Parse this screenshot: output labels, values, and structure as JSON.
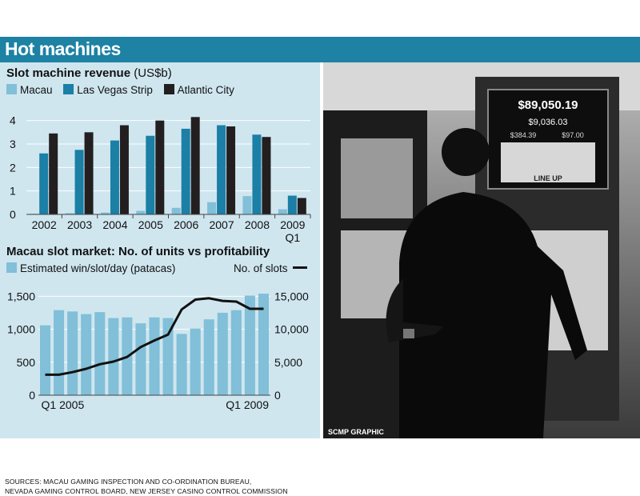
{
  "header": {
    "title": "Hot machines"
  },
  "colors": {
    "header": "#1d82a3",
    "panel": "#cfe6ef",
    "macau": "#82bfd8",
    "las_vegas": "#1b7fa6",
    "atlantic_city": "#231f20",
    "slots_line": "#111111"
  },
  "photo": {
    "credit": "SCMP GRAPHIC",
    "screen_amount_1": "$89,050.19",
    "screen_amount_2": "$9,036.03",
    "screen_amount_3": "$384.39",
    "screen_amount_4": "$97.00",
    "screen_label": "LINE UP"
  },
  "sources": {
    "line1": "SOURCES: MACAU GAMING INSPECTION AND CO-ORDINATION BUREAU,",
    "line2": "NEVADA GAMING CONTROL BOARD, NEW JERSEY CASINO CONTROL COMMISSION"
  },
  "chart_data": [
    {
      "type": "bar",
      "title": "Slot machine revenue",
      "title_unit": "(US$b)",
      "categories": [
        "2002",
        "2003",
        "2004",
        "2005",
        "2006",
        "2007",
        "2008",
        "2009 Q1"
      ],
      "category_lines": [
        [
          "2002"
        ],
        [
          "2003"
        ],
        [
          "2004"
        ],
        [
          "2005"
        ],
        [
          "2006"
        ],
        [
          "2007"
        ],
        [
          "2008"
        ],
        [
          "2009",
          "Q1"
        ]
      ],
      "series": [
        {
          "name": "Macau",
          "values": [
            0.03,
            0.05,
            0.08,
            0.15,
            0.28,
            0.52,
            0.78,
            0.22
          ]
        },
        {
          "name": "Las Vegas Strip",
          "values": [
            2.6,
            2.75,
            3.15,
            3.35,
            3.65,
            3.8,
            3.4,
            0.8
          ]
        },
        {
          "name": "Atlantic City",
          "values": [
            3.45,
            3.5,
            3.8,
            4.0,
            4.15,
            3.75,
            3.3,
            0.7
          ]
        }
      ],
      "ylim": [
        0,
        4.5
      ],
      "yticks": [
        "0",
        "1",
        "2",
        "3",
        "4"
      ],
      "grid": true,
      "legend": "top"
    },
    {
      "type": "bar",
      "title": "Macau slot market: No. of units vs profitability",
      "x_labels": [
        "Q1 2005",
        "Q1 2009"
      ],
      "series": [
        {
          "name": "Estimated win/slot/day (patacas)",
          "type": "bar",
          "axis": "left",
          "values": [
            1060,
            1290,
            1270,
            1230,
            1260,
            1170,
            1180,
            1090,
            1180,
            1170,
            930,
            1010,
            1150,
            1250,
            1290,
            1510,
            1540
          ]
        },
        {
          "name": "No. of slots",
          "type": "line",
          "axis": "right",
          "values": [
            3100,
            3100,
            3500,
            4000,
            4700,
            5100,
            5800,
            7300,
            8300,
            9200,
            13000,
            14500,
            14700,
            14300,
            14200,
            13100,
            13100
          ]
        }
      ],
      "left_ylim": [
        0,
        1650
      ],
      "left_yticks": [
        "0",
        "500",
        "1,000",
        "1,500"
      ],
      "right_ylim": [
        0,
        16500
      ],
      "right_yticks": [
        "0",
        "5,000",
        "10,000",
        "15,000"
      ],
      "grid": true,
      "legend": "top"
    }
  ]
}
